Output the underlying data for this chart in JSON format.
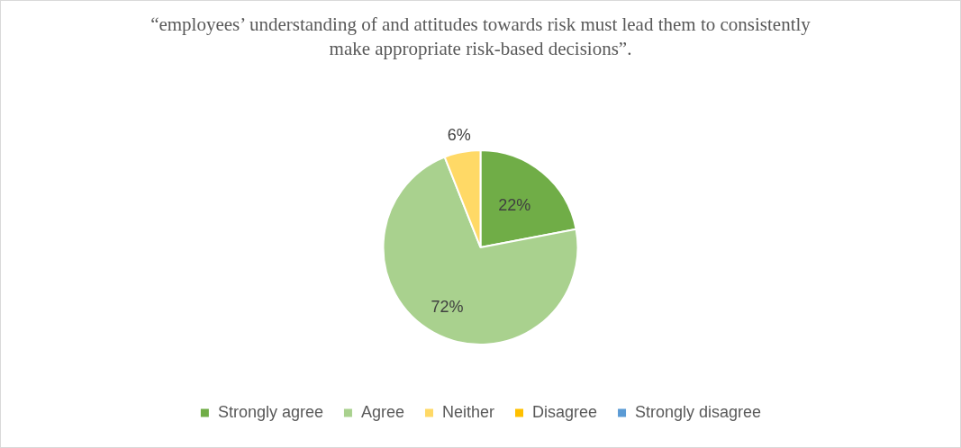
{
  "chart_data": {
    "type": "pie",
    "title": "“employees’ understanding of and attitudes towards risk must lead them to consistently make appropriate risk-based decisions”.",
    "categories": [
      "Strongly agree",
      "Agree",
      "Neither",
      "Disagree",
      "Strongly disagree"
    ],
    "values": [
      22,
      72,
      6,
      0,
      0
    ],
    "colors": [
      "#70ad47",
      "#a9d18e",
      "#ffd966",
      "#ffc000",
      "#5b9bd5"
    ],
    "value_labels": [
      "22%",
      "72%",
      "6%",
      null,
      null
    ],
    "legend": "bottom"
  }
}
